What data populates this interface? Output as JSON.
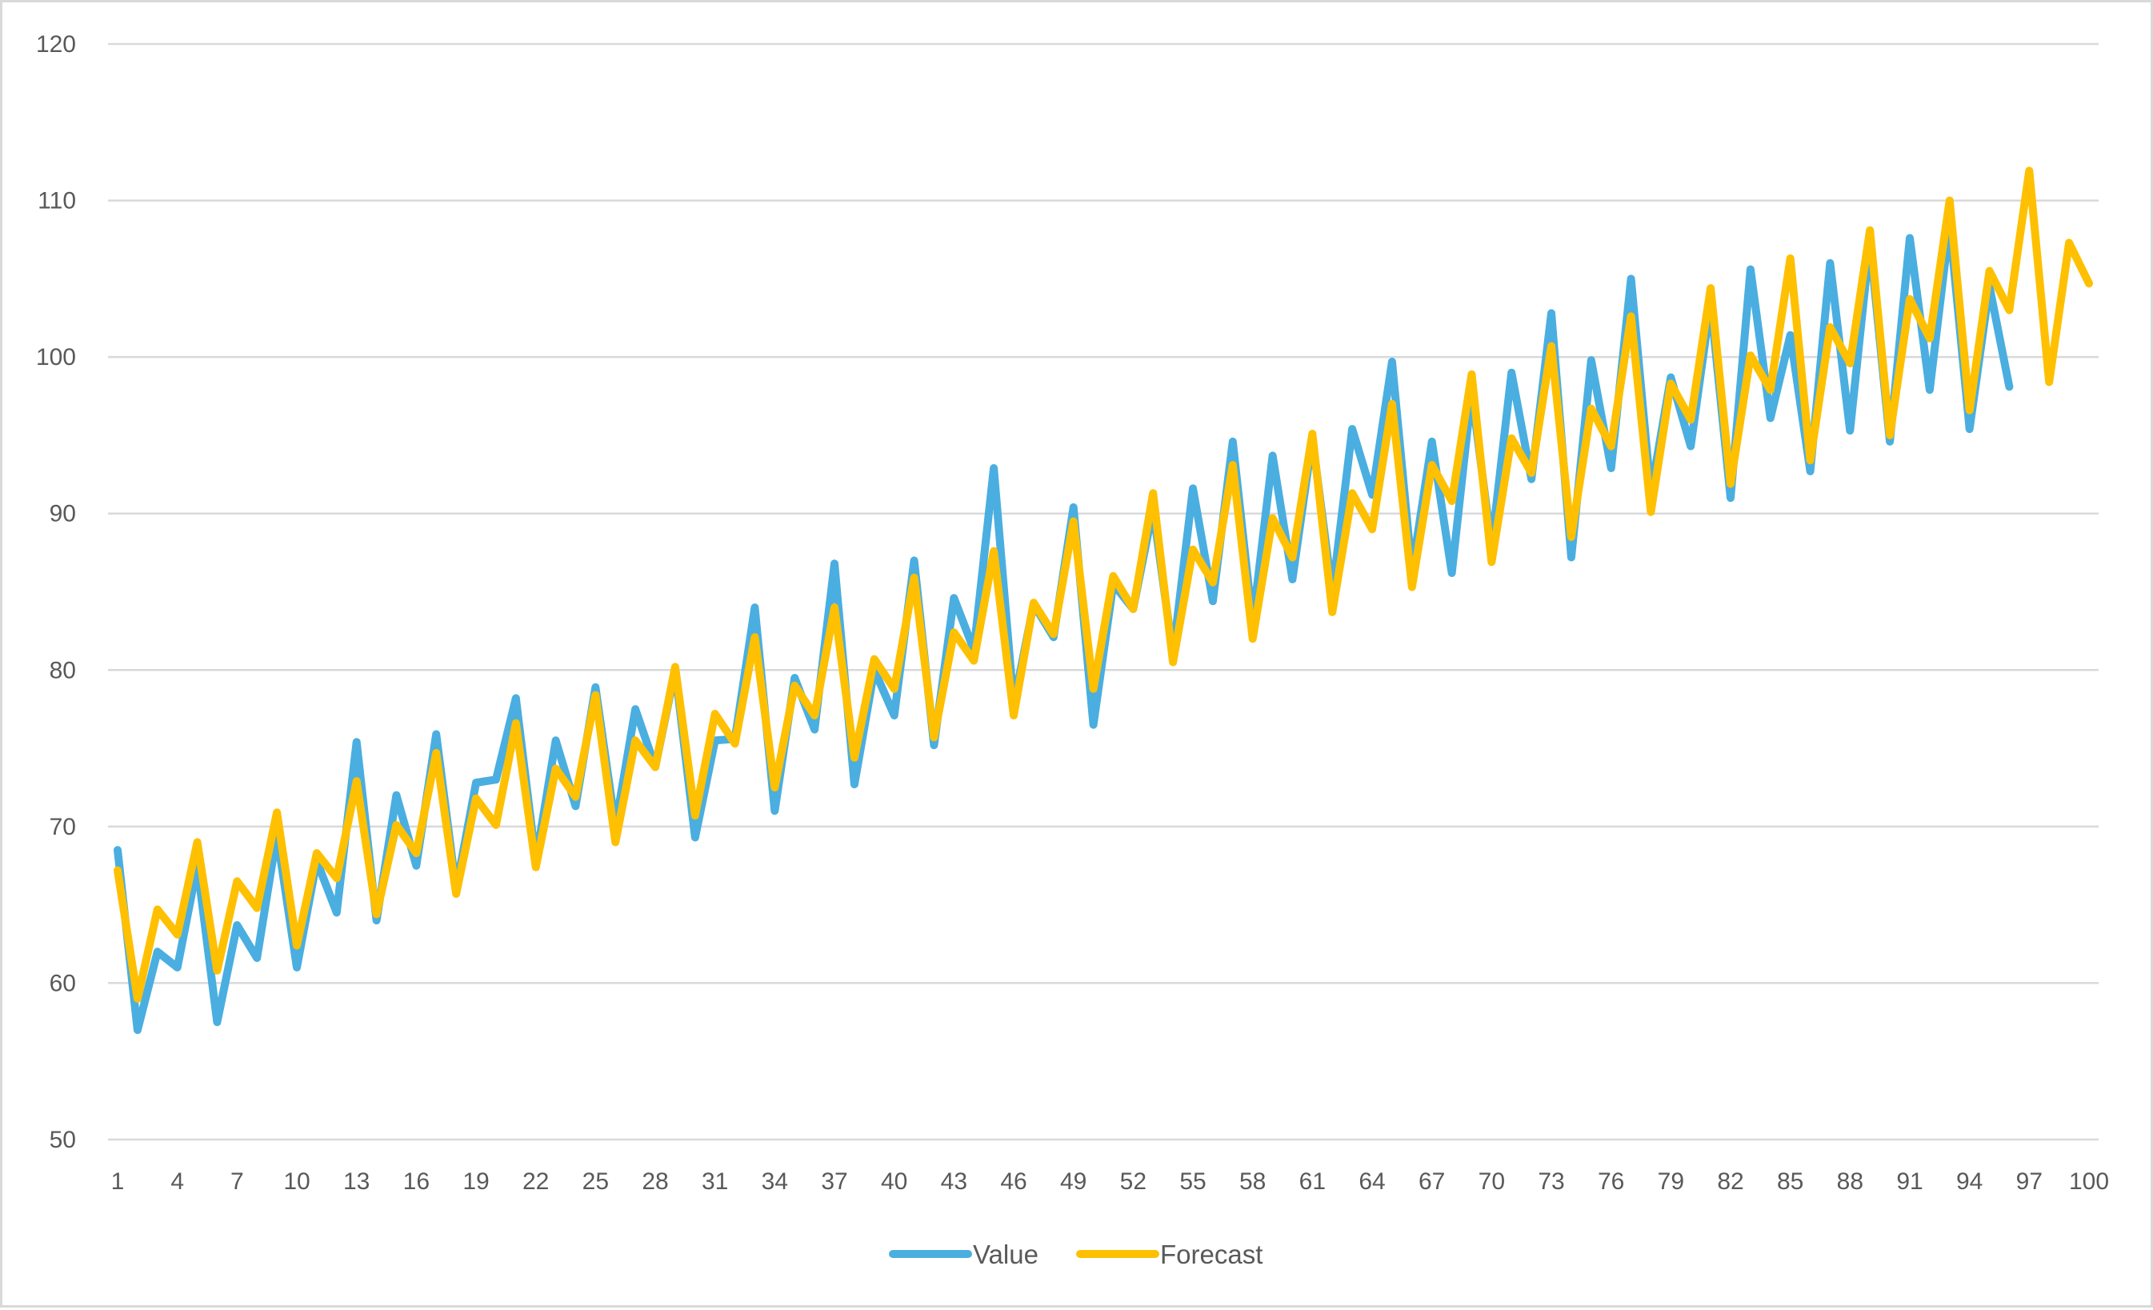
{
  "chart_data": {
    "type": "line",
    "title": "",
    "xlabel": "",
    "ylabel": "",
    "ylim": [
      50,
      120
    ],
    "y_ticks": [
      50,
      60,
      70,
      80,
      90,
      100,
      110,
      120
    ],
    "x_range": [
      1,
      100
    ],
    "x_ticks": [
      1,
      4,
      7,
      10,
      13,
      16,
      19,
      22,
      25,
      28,
      31,
      34,
      37,
      40,
      43,
      46,
      49,
      52,
      55,
      58,
      61,
      64,
      67,
      70,
      73,
      76,
      79,
      82,
      85,
      88,
      91,
      94,
      97,
      100
    ],
    "grid": "horizontal",
    "legend_position": "bottom",
    "series": [
      {
        "name": "Value",
        "color": "#4aaee0",
        "x_start": 1,
        "values": [
          68.5,
          57,
          62,
          61,
          67.5,
          57.5,
          63.7,
          61.6,
          69.5,
          61,
          67.8,
          64.5,
          75.4,
          64,
          72,
          67.5,
          75.9,
          66,
          72.8,
          73,
          78.2,
          67.8,
          75.5,
          71.3,
          78.9,
          70,
          77.5,
          73.8,
          80,
          69.3,
          75.5,
          75.6,
          84,
          71,
          79.5,
          76.2,
          86.8,
          72.7,
          80,
          77.1,
          87,
          75.2,
          84.6,
          81.3,
          92.9,
          77.8,
          84.2,
          82.1,
          90.4,
          76.5,
          85.5,
          83.9,
          90.3,
          81,
          91.6,
          84.4,
          94.6,
          83,
          93.7,
          85.8,
          94.8,
          84.9,
          95.4,
          91.2,
          99.7,
          86.3,
          94.6,
          86.2,
          97.8,
          87.9,
          99,
          92.2,
          102.8,
          87.2,
          99.8,
          92.9,
          105,
          91.3,
          98.7,
          94.3,
          103.5,
          91,
          105.6,
          96.1,
          101.4,
          92.7,
          106,
          95.3,
          107.4,
          94.6,
          107.6,
          97.9,
          108.5,
          95.4,
          104.5,
          98.1
        ]
      },
      {
        "name": "Forecast",
        "color": "#fec000",
        "x_start": 1,
        "values": [
          67.2,
          59,
          64.7,
          63.1,
          69,
          60.8,
          66.5,
          64.8,
          70.9,
          62.4,
          68.3,
          66.7,
          72.9,
          64.4,
          70.1,
          68.3,
          74.7,
          65.7,
          71.8,
          70.1,
          76.6,
          67.4,
          73.7,
          71.9,
          78.4,
          69,
          75.5,
          73.8,
          80.2,
          70.7,
          77.2,
          75.3,
          82.1,
          72.5,
          79,
          77.1,
          84,
          74.4,
          80.7,
          78.8,
          85.9,
          75.7,
          82.4,
          80.6,
          87.6,
          77.1,
          84.3,
          82.3,
          89.5,
          78.8,
          86,
          83.9,
          91.3,
          80.5,
          87.7,
          85.6,
          93.1,
          82,
          89.7,
          87.2,
          95.1,
          83.7,
          91.3,
          89,
          97,
          85.3,
          93.1,
          90.8,
          98.9,
          86.9,
          94.8,
          92.6,
          100.7,
          88.5,
          96.7,
          94.3,
          102.6,
          90.1,
          98.3,
          96,
          104.4,
          91.9,
          100.1,
          97.9,
          106.3,
          93.4,
          101.9,
          99.6,
          108.1,
          95,
          103.7,
          101.2,
          110,
          96.6,
          105.5,
          103,
          111.9,
          98.4,
          107.3,
          104.7
        ]
      }
    ]
  }
}
